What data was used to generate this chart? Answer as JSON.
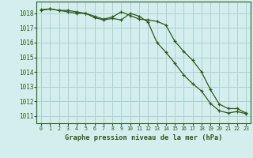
{
  "title": "Graphe pression niveau de la mer (hPa)",
  "bg_color": "#d4eeee",
  "grid_color": "#aad4cc",
  "line_color": "#2d5a1e",
  "ylim": [
    1010.5,
    1018.8
  ],
  "xlim": [
    -0.5,
    23.5
  ],
  "yticks": [
    1011,
    1012,
    1013,
    1014,
    1015,
    1016,
    1017,
    1018
  ],
  "xticks": [
    0,
    1,
    2,
    3,
    4,
    5,
    6,
    7,
    8,
    9,
    10,
    11,
    12,
    13,
    14,
    15,
    16,
    17,
    18,
    19,
    20,
    21,
    22,
    23
  ],
  "series1_x": [
    0,
    1,
    2,
    3,
    4,
    5,
    6,
    7,
    8,
    9,
    10,
    11,
    12,
    13,
    14,
    15,
    16,
    17,
    18,
    19,
    20,
    21,
    22,
    23
  ],
  "series1": [
    1018.2,
    1018.3,
    1018.2,
    1018.2,
    1018.1,
    1018.0,
    1017.8,
    1017.6,
    1017.75,
    1018.1,
    1017.85,
    1017.6,
    1017.55,
    1017.45,
    1017.2,
    1016.1,
    1015.4,
    1014.8,
    1014.0,
    1012.8,
    1011.8,
    1011.5,
    1011.5,
    1011.2
  ],
  "series2_x": [
    0,
    1,
    2,
    3,
    4,
    5,
    6,
    7,
    8,
    9,
    10,
    11,
    12,
    13,
    14,
    15,
    16,
    17,
    18,
    19,
    20,
    21,
    22,
    23
  ],
  "series2": [
    1018.25,
    1018.3,
    1018.2,
    1018.1,
    1018.0,
    1018.0,
    1017.7,
    1017.55,
    1017.65,
    1017.55,
    1018.0,
    1017.8,
    1017.4,
    1016.0,
    1015.35,
    1014.6,
    1013.8,
    1013.2,
    1012.7,
    1011.85,
    1011.35,
    1011.2,
    1011.3,
    1011.15
  ]
}
